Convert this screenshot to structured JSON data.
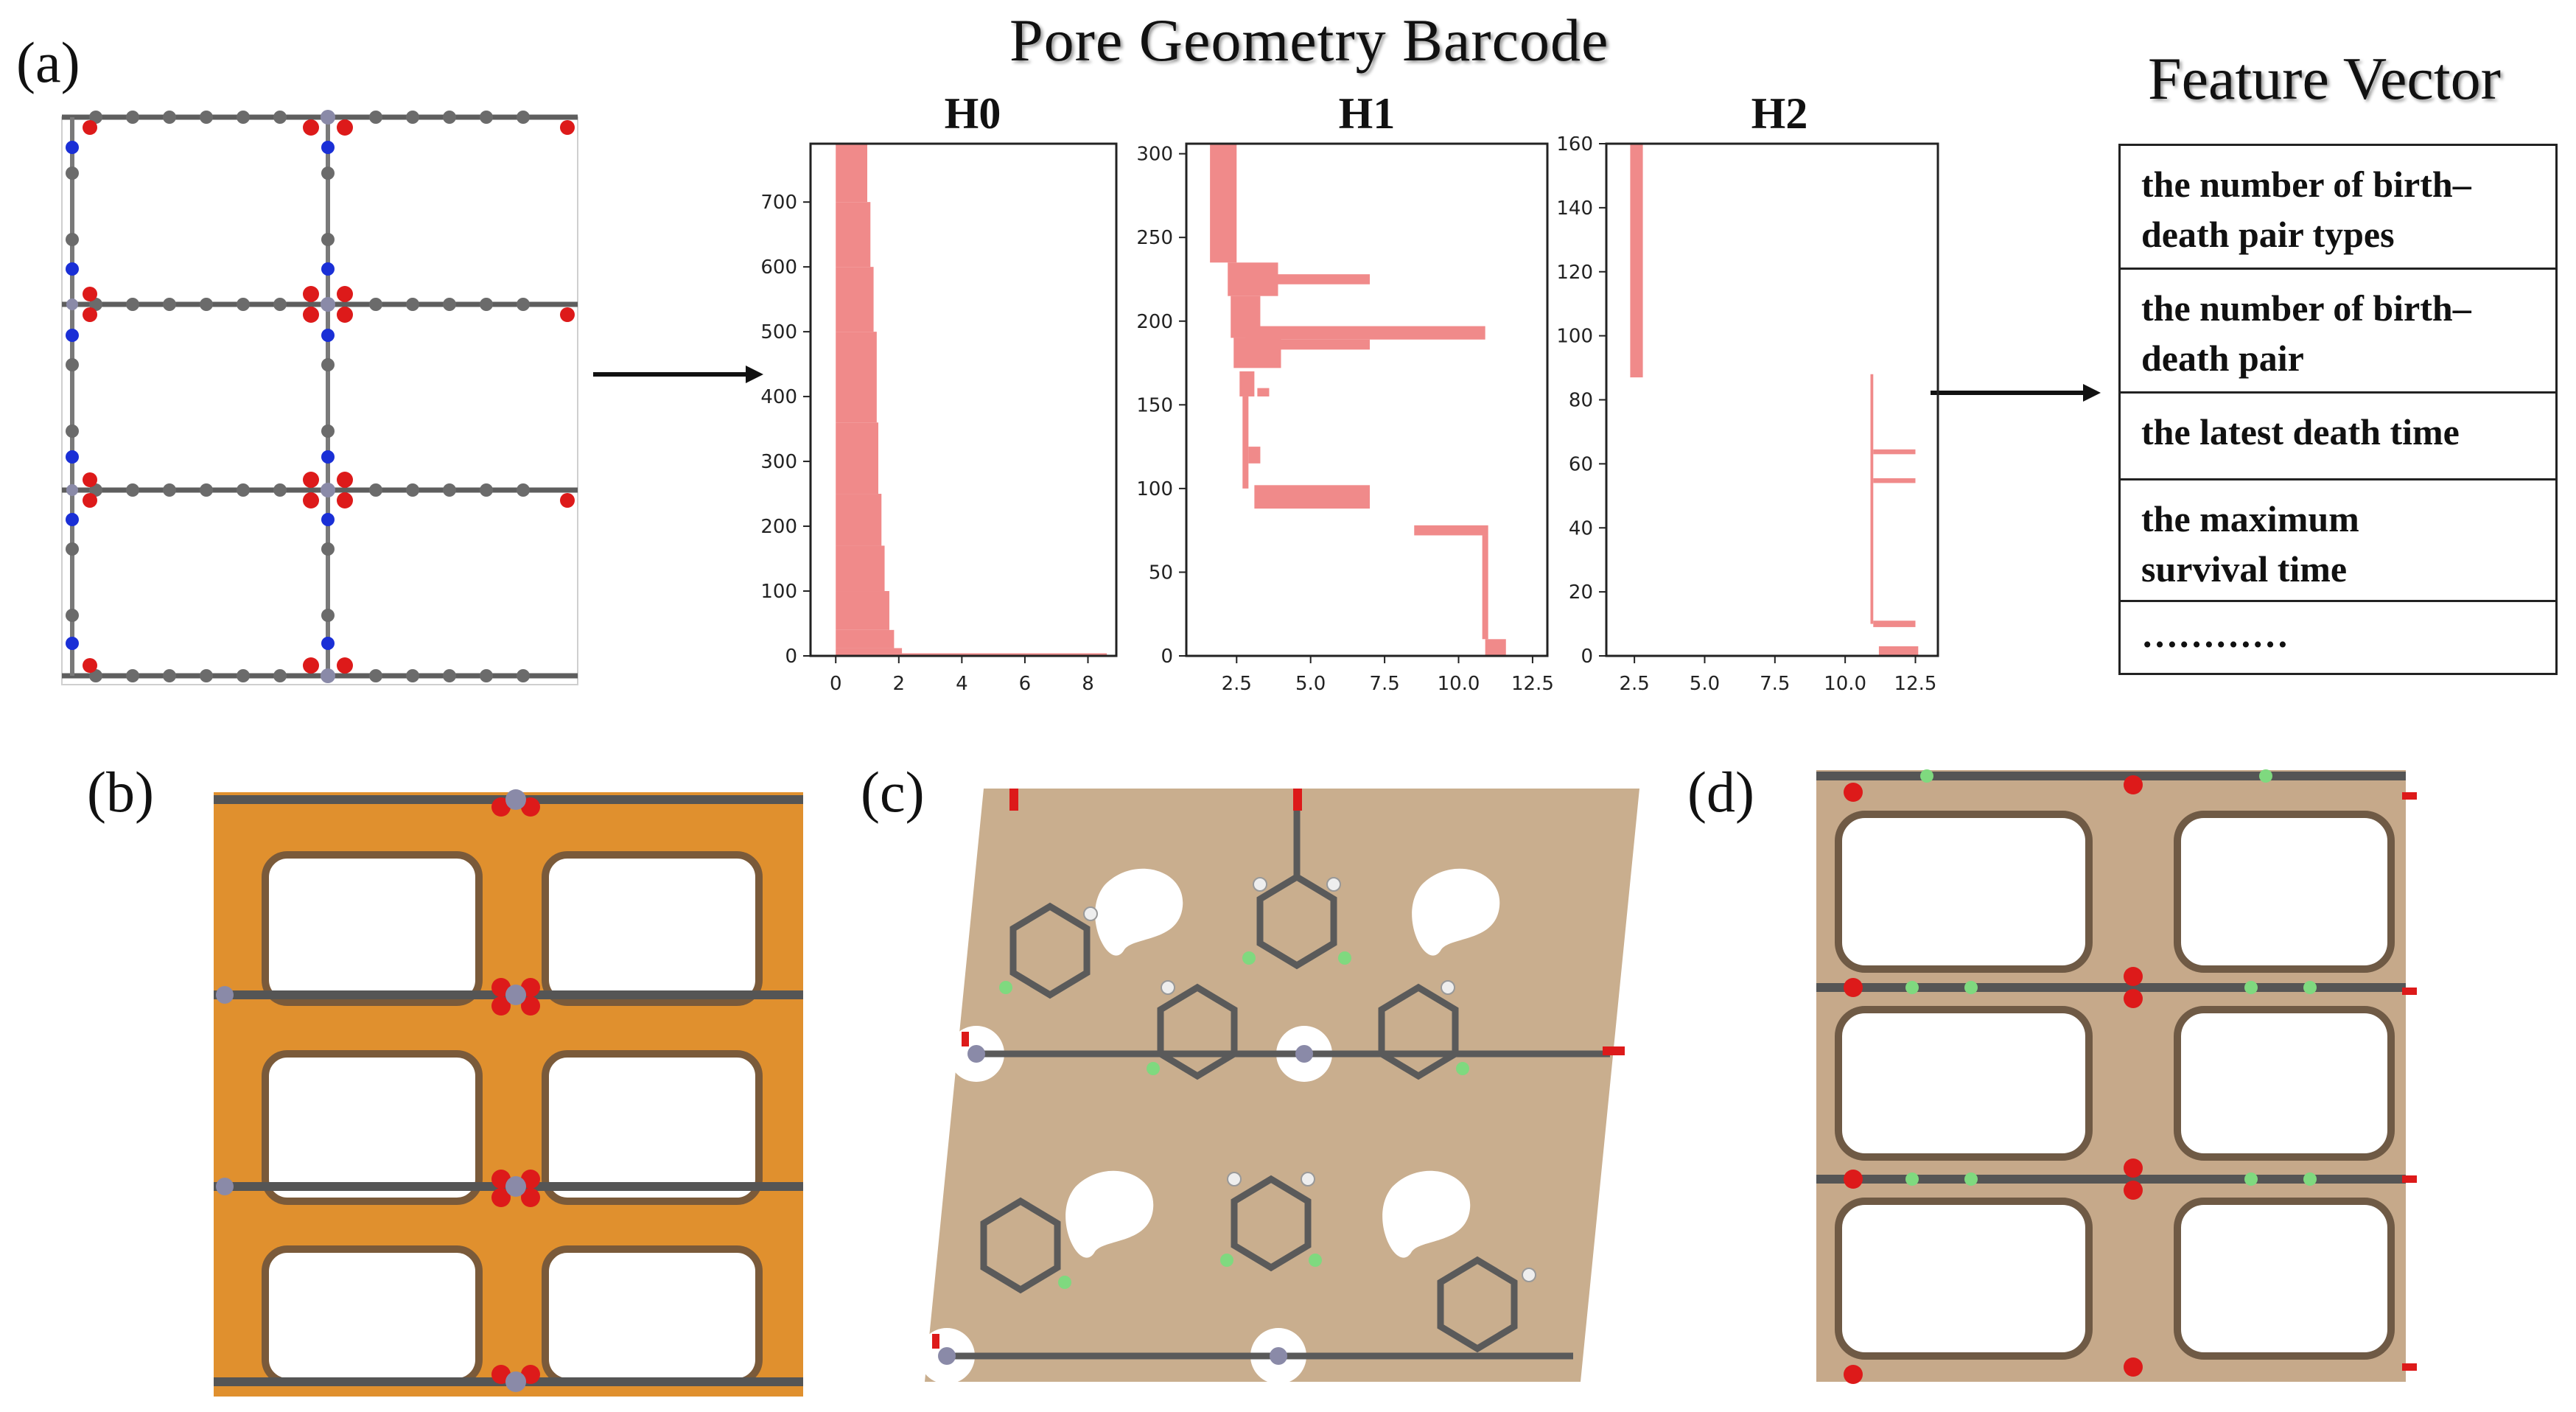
{
  "labels": {
    "a": "(a)",
    "b": "(b)",
    "c": "(c)",
    "d": "(d)"
  },
  "title": "Pore Geometry Barcode",
  "feature_title": "Feature Vector",
  "feature_items": [
    [
      "the number  of birth–",
      "death pair types"
    ],
    [
      "the number  of birth–",
      "death pair"
    ],
    [
      "the latest death time"
    ],
    [
      "the maximum",
      "survival  time"
    ],
    [
      "…………"
    ]
  ],
  "colors": {
    "bar": "#f08a8a",
    "accent_orange": "#e0902e",
    "surface_tan": "#cdb395",
    "atom_grey": "#6b6b6b",
    "atom_red": "#dd1a1a",
    "atom_blue": "#1a2fd6",
    "atom_green": "#7fd97f"
  },
  "chart_data": [
    {
      "type": "bar",
      "orientation": "horizontal",
      "title": "H0",
      "xticks": [
        "0",
        "2",
        "4",
        "6",
        "8"
      ],
      "yticks": [
        "0",
        "100",
        "200",
        "300",
        "400",
        "500",
        "600",
        "700"
      ],
      "xlim": [
        -0.8,
        8.9
      ],
      "ylim": [
        0,
        790
      ],
      "bars": [
        {
          "y0": 700,
          "y1": 790,
          "x0": 0,
          "x1": 1.0
        },
        {
          "y0": 600,
          "y1": 700,
          "x0": 0,
          "x1": 1.1
        },
        {
          "y0": 500,
          "y1": 600,
          "x0": 0,
          "x1": 1.2
        },
        {
          "y0": 360,
          "y1": 500,
          "x0": 0,
          "x1": 1.3
        },
        {
          "y0": 250,
          "y1": 360,
          "x0": 0,
          "x1": 1.35
        },
        {
          "y0": 170,
          "y1": 250,
          "x0": 0,
          "x1": 1.45
        },
        {
          "y0": 100,
          "y1": 170,
          "x0": 0,
          "x1": 1.55
        },
        {
          "y0": 40,
          "y1": 100,
          "x0": 0,
          "x1": 1.7
        },
        {
          "y0": 12,
          "y1": 40,
          "x0": 0,
          "x1": 1.85
        },
        {
          "y0": 4,
          "y1": 12,
          "x0": 0,
          "x1": 2.1
        },
        {
          "y0": 0,
          "y1": 4,
          "x0": 0,
          "x1": 8.6
        }
      ]
    },
    {
      "type": "bar",
      "orientation": "horizontal",
      "title": "H1",
      "xticks": [
        "2.5",
        "5.0",
        "7.5",
        "10.0",
        "12.5"
      ],
      "yticks": [
        "0",
        "50",
        "100",
        "150",
        "200",
        "250",
        "300"
      ],
      "xlim": [
        0.8,
        13.0
      ],
      "ylim": [
        0,
        306
      ],
      "bars": [
        {
          "y0": 235,
          "y1": 306,
          "x0": 1.6,
          "x1": 2.5
        },
        {
          "y0": 215,
          "y1": 235,
          "x0": 2.2,
          "x1": 3.9
        },
        {
          "y0": 222,
          "y1": 228,
          "x0": 3.9,
          "x1": 7.0
        },
        {
          "y0": 190,
          "y1": 215,
          "x0": 2.3,
          "x1": 3.3
        },
        {
          "y0": 189,
          "y1": 197,
          "x0": 2.8,
          "x1": 10.9
        },
        {
          "y0": 183,
          "y1": 189,
          "x0": 2.6,
          "x1": 7.0
        },
        {
          "y0": 172,
          "y1": 190,
          "x0": 2.4,
          "x1": 4.0
        },
        {
          "y0": 155,
          "y1": 170,
          "x0": 2.6,
          "x1": 3.1
        },
        {
          "y0": 155,
          "y1": 160,
          "x0": 3.2,
          "x1": 3.6
        },
        {
          "y0": 100,
          "y1": 155,
          "x0": 2.7,
          "x1": 2.9
        },
        {
          "y0": 115,
          "y1": 125,
          "x0": 2.9,
          "x1": 3.3
        },
        {
          "y0": 88,
          "y1": 102,
          "x0": 3.1,
          "x1": 7.0
        },
        {
          "y0": 72,
          "y1": 78,
          "x0": 8.5,
          "x1": 11.0
        },
        {
          "y0": 10,
          "y1": 72,
          "x0": 10.8,
          "x1": 11.0
        },
        {
          "y0": 0,
          "y1": 10,
          "x0": 10.9,
          "x1": 11.6
        }
      ]
    },
    {
      "type": "bar",
      "orientation": "horizontal",
      "title": "H2",
      "xticks": [
        "2.5",
        "5.0",
        "7.5",
        "10.0",
        "12.5"
      ],
      "yticks": [
        "0",
        "20",
        "40",
        "60",
        "80",
        "100",
        "120",
        "140",
        "160"
      ],
      "xlim": [
        1.5,
        13.3
      ],
      "ylim": [
        0,
        160
      ],
      "bars": [
        {
          "y0": 87,
          "y1": 160,
          "x0": 2.35,
          "x1": 2.8
        },
        {
          "y0": 10,
          "y1": 88,
          "x0": 10.9,
          "x1": 11.0
        },
        {
          "y0": 63,
          "y1": 64.5,
          "x0": 11.0,
          "x1": 12.5
        },
        {
          "y0": 54,
          "y1": 55.5,
          "x0": 11.0,
          "x1": 12.5
        },
        {
          "y0": 9,
          "y1": 11,
          "x0": 11.0,
          "x1": 12.5
        },
        {
          "y0": 0,
          "y1": 3,
          "x0": 11.2,
          "x1": 12.6
        }
      ]
    }
  ]
}
